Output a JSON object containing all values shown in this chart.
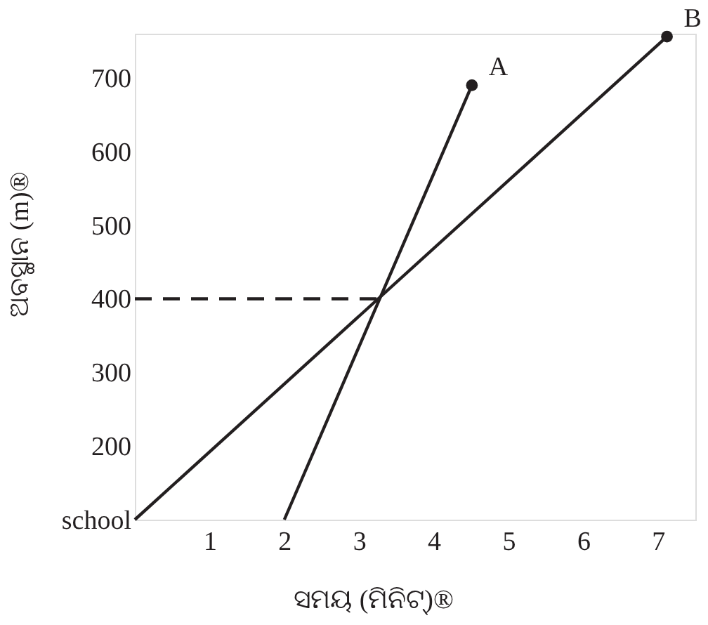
{
  "chart_data": {
    "type": "line",
    "xlabel": "ସମୟ  (ମିନିଟ୍)®",
    "ylabel": "ଅବସ୍ଥାନ  (m)®",
    "xlim": [
      0,
      7.5
    ],
    "ylim": [
      100,
      760
    ],
    "xticks": [
      1,
      2,
      3,
      4,
      5,
      6,
      7
    ],
    "yticks": [
      {
        "value": 100,
        "label": "school"
      },
      200,
      300,
      400,
      500,
      600,
      700
    ],
    "grid": false,
    "series": [
      {
        "name": "A",
        "color": "#231f20",
        "x": [
          2,
          4.51
        ],
        "values": [
          100,
          690
        ],
        "marker": "circle",
        "line_style": "solid"
      },
      {
        "name": "B",
        "color": "#231f20",
        "x": [
          0,
          7.12
        ],
        "values": [
          100,
          756
        ],
        "marker": "circle",
        "line_style": "solid"
      },
      {
        "color": "#231f20",
        "x": [
          0,
          3.27
        ],
        "values": [
          400,
          400
        ],
        "marker": "none",
        "line_style": "dashed"
      }
    ]
  }
}
